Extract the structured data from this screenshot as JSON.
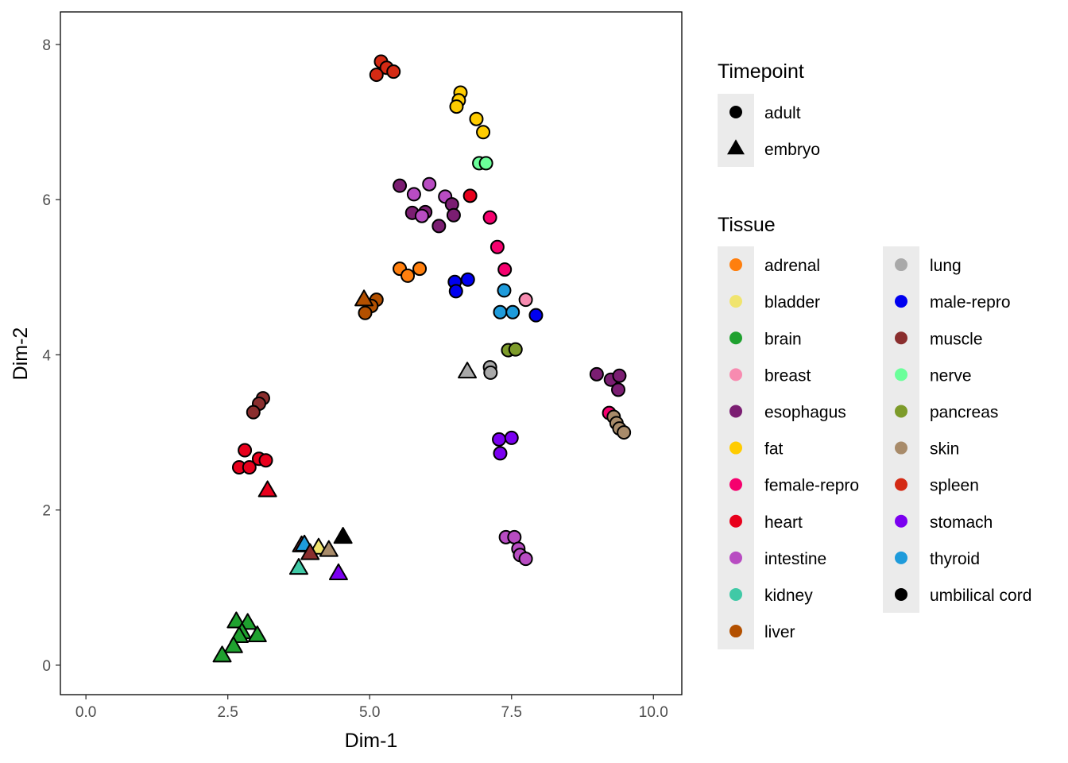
{
  "chart_data": {
    "type": "scatter",
    "xlabel": "Dim-1",
    "ylabel": "Dim-2",
    "xlim": [
      -0.45,
      10.5
    ],
    "ylim": [
      -0.38,
      8.42
    ],
    "xticks": [
      0,
      2.5,
      5,
      7.5,
      10
    ],
    "xtick_labels": [
      "0.0",
      "2.5",
      "5.0",
      "7.5",
      "10.0"
    ],
    "yticks": [
      0,
      2,
      4,
      6,
      8
    ],
    "ytick_labels": [
      "0",
      "2",
      "4",
      "6",
      "8"
    ],
    "grid": false,
    "legend_placement": "right",
    "legends": {
      "timepoint": {
        "title": "Timepoint",
        "items": [
          {
            "label": "adult",
            "shape": "circle"
          },
          {
            "label": "embryo",
            "shape": "triangle"
          }
        ]
      },
      "tissue": {
        "title": "Tissue",
        "items": [
          {
            "label": "adrenal",
            "color": "#FF7F0E"
          },
          {
            "label": "bladder",
            "color": "#F0E46E"
          },
          {
            "label": "brain",
            "color": "#1FA12F"
          },
          {
            "label": "breast",
            "color": "#F78BB0"
          },
          {
            "label": "esophagus",
            "color": "#7B1E72"
          },
          {
            "label": "fat",
            "color": "#FFCC00"
          },
          {
            "label": "female-repro",
            "color": "#F5006E"
          },
          {
            "label": "heart",
            "color": "#E8001C"
          },
          {
            "label": "intestine",
            "color": "#B84CC2"
          },
          {
            "label": "kidney",
            "color": "#40C9A6"
          },
          {
            "label": "liver",
            "color": "#B35000"
          },
          {
            "label": "lung",
            "color": "#A9A9A9"
          },
          {
            "label": "male-repro",
            "color": "#0000F0"
          },
          {
            "label": "muscle",
            "color": "#8A2E2E"
          },
          {
            "label": "nerve",
            "color": "#6BFF9A"
          },
          {
            "label": "pancreas",
            "color": "#7D9B2A"
          },
          {
            "label": "skin",
            "color": "#A88B6A"
          },
          {
            "label": "spleen",
            "color": "#D42A14"
          },
          {
            "label": "stomach",
            "color": "#7B00F0"
          },
          {
            "label": "thyroid",
            "color": "#1E9BDB"
          },
          {
            "label": "umbilical cord",
            "color": "#000000"
          }
        ]
      }
    },
    "points": [
      {
        "x": 5.2,
        "y": 7.78,
        "tissue": "spleen",
        "timepoint": "adult"
      },
      {
        "x": 5.3,
        "y": 7.7,
        "tissue": "spleen",
        "timepoint": "adult"
      },
      {
        "x": 5.42,
        "y": 7.65,
        "tissue": "spleen",
        "timepoint": "adult"
      },
      {
        "x": 5.12,
        "y": 7.61,
        "tissue": "spleen",
        "timepoint": "adult"
      },
      {
        "x": 6.6,
        "y": 7.38,
        "tissue": "fat",
        "timepoint": "adult"
      },
      {
        "x": 6.57,
        "y": 7.28,
        "tissue": "fat",
        "timepoint": "adult"
      },
      {
        "x": 6.53,
        "y": 7.2,
        "tissue": "fat",
        "timepoint": "adult"
      },
      {
        "x": 6.88,
        "y": 7.04,
        "tissue": "fat",
        "timepoint": "adult"
      },
      {
        "x": 7.0,
        "y": 6.87,
        "tissue": "fat",
        "timepoint": "adult"
      },
      {
        "x": 6.93,
        "y": 6.47,
        "tissue": "nerve",
        "timepoint": "adult"
      },
      {
        "x": 7.05,
        "y": 6.47,
        "tissue": "nerve",
        "timepoint": "adult"
      },
      {
        "x": 5.53,
        "y": 6.18,
        "tissue": "esophagus",
        "timepoint": "adult"
      },
      {
        "x": 6.05,
        "y": 6.2,
        "tissue": "intestine",
        "timepoint": "adult"
      },
      {
        "x": 5.78,
        "y": 6.07,
        "tissue": "intestine",
        "timepoint": "adult"
      },
      {
        "x": 6.33,
        "y": 6.04,
        "tissue": "intestine",
        "timepoint": "adult"
      },
      {
        "x": 6.45,
        "y": 5.94,
        "tissue": "esophagus",
        "timepoint": "adult"
      },
      {
        "x": 5.75,
        "y": 5.83,
        "tissue": "esophagus",
        "timepoint": "adult"
      },
      {
        "x": 5.98,
        "y": 5.84,
        "tissue": "esophagus",
        "timepoint": "adult"
      },
      {
        "x": 5.92,
        "y": 5.79,
        "tissue": "intestine",
        "timepoint": "adult"
      },
      {
        "x": 6.48,
        "y": 5.8,
        "tissue": "esophagus",
        "timepoint": "adult"
      },
      {
        "x": 6.22,
        "y": 5.66,
        "tissue": "esophagus",
        "timepoint": "adult"
      },
      {
        "x": 6.77,
        "y": 6.05,
        "tissue": "heart",
        "timepoint": "adult"
      },
      {
        "x": 7.12,
        "y": 5.77,
        "tissue": "female-repro",
        "timepoint": "adult"
      },
      {
        "x": 7.25,
        "y": 5.39,
        "tissue": "female-repro",
        "timepoint": "adult"
      },
      {
        "x": 7.38,
        "y": 5.1,
        "tissue": "female-repro",
        "timepoint": "adult"
      },
      {
        "x": 5.53,
        "y": 5.11,
        "tissue": "adrenal",
        "timepoint": "adult"
      },
      {
        "x": 5.67,
        "y": 5.02,
        "tissue": "adrenal",
        "timepoint": "adult"
      },
      {
        "x": 5.88,
        "y": 5.11,
        "tissue": "adrenal",
        "timepoint": "adult"
      },
      {
        "x": 6.5,
        "y": 4.94,
        "tissue": "male-repro",
        "timepoint": "adult"
      },
      {
        "x": 6.52,
        "y": 4.82,
        "tissue": "male-repro",
        "timepoint": "adult"
      },
      {
        "x": 6.73,
        "y": 4.97,
        "tissue": "male-repro",
        "timepoint": "adult"
      },
      {
        "x": 7.37,
        "y": 4.83,
        "tissue": "thyroid",
        "timepoint": "adult"
      },
      {
        "x": 7.75,
        "y": 4.71,
        "tissue": "breast",
        "timepoint": "adult"
      },
      {
        "x": 7.3,
        "y": 4.55,
        "tissue": "thyroid",
        "timepoint": "adult"
      },
      {
        "x": 7.52,
        "y": 4.55,
        "tissue": "thyroid",
        "timepoint": "adult"
      },
      {
        "x": 7.93,
        "y": 4.51,
        "tissue": "male-repro",
        "timepoint": "adult"
      },
      {
        "x": 7.44,
        "y": 4.06,
        "tissue": "pancreas",
        "timepoint": "adult"
      },
      {
        "x": 7.57,
        "y": 4.07,
        "tissue": "pancreas",
        "timepoint": "adult"
      },
      {
        "x": 4.9,
        "y": 4.71,
        "tissue": "liver",
        "timepoint": "embryo"
      },
      {
        "x": 5.12,
        "y": 4.71,
        "tissue": "liver",
        "timepoint": "adult"
      },
      {
        "x": 5.03,
        "y": 4.63,
        "tissue": "liver",
        "timepoint": "adult"
      },
      {
        "x": 4.92,
        "y": 4.54,
        "tissue": "liver",
        "timepoint": "adult"
      },
      {
        "x": 6.72,
        "y": 3.78,
        "tissue": "lung",
        "timepoint": "embryo"
      },
      {
        "x": 7.12,
        "y": 3.84,
        "tissue": "lung",
        "timepoint": "adult"
      },
      {
        "x": 7.13,
        "y": 3.77,
        "tissue": "lung",
        "timepoint": "adult"
      },
      {
        "x": 9.0,
        "y": 3.75,
        "tissue": "esophagus",
        "timepoint": "adult"
      },
      {
        "x": 9.25,
        "y": 3.68,
        "tissue": "esophagus",
        "timepoint": "adult"
      },
      {
        "x": 9.4,
        "y": 3.73,
        "tissue": "esophagus",
        "timepoint": "adult"
      },
      {
        "x": 9.38,
        "y": 3.55,
        "tissue": "esophagus",
        "timepoint": "adult"
      },
      {
        "x": 9.22,
        "y": 3.25,
        "tissue": "female-repro",
        "timepoint": "adult"
      },
      {
        "x": 9.3,
        "y": 3.2,
        "tissue": "skin",
        "timepoint": "adult"
      },
      {
        "x": 9.35,
        "y": 3.12,
        "tissue": "skin",
        "timepoint": "adult"
      },
      {
        "x": 9.4,
        "y": 3.05,
        "tissue": "skin",
        "timepoint": "adult"
      },
      {
        "x": 9.48,
        "y": 3.0,
        "tissue": "skin",
        "timepoint": "adult"
      },
      {
        "x": 3.12,
        "y": 3.44,
        "tissue": "muscle",
        "timepoint": "adult"
      },
      {
        "x": 3.05,
        "y": 3.37,
        "tissue": "muscle",
        "timepoint": "adult"
      },
      {
        "x": 2.95,
        "y": 3.26,
        "tissue": "muscle",
        "timepoint": "adult"
      },
      {
        "x": 2.8,
        "y": 2.77,
        "tissue": "heart",
        "timepoint": "adult"
      },
      {
        "x": 3.05,
        "y": 2.66,
        "tissue": "heart",
        "timepoint": "adult"
      },
      {
        "x": 3.17,
        "y": 2.64,
        "tissue": "heart",
        "timepoint": "adult"
      },
      {
        "x": 2.7,
        "y": 2.55,
        "tissue": "heart",
        "timepoint": "adult"
      },
      {
        "x": 2.88,
        "y": 2.55,
        "tissue": "heart",
        "timepoint": "adult"
      },
      {
        "x": 3.2,
        "y": 2.25,
        "tissue": "heart",
        "timepoint": "embryo"
      },
      {
        "x": 7.28,
        "y": 2.91,
        "tissue": "stomach",
        "timepoint": "adult"
      },
      {
        "x": 7.5,
        "y": 2.93,
        "tissue": "stomach",
        "timepoint": "adult"
      },
      {
        "x": 7.3,
        "y": 2.73,
        "tissue": "stomach",
        "timepoint": "adult"
      },
      {
        "x": 7.4,
        "y": 1.65,
        "tissue": "intestine",
        "timepoint": "adult"
      },
      {
        "x": 7.55,
        "y": 1.65,
        "tissue": "intestine",
        "timepoint": "adult"
      },
      {
        "x": 7.62,
        "y": 1.5,
        "tissue": "intestine",
        "timepoint": "adult"
      },
      {
        "x": 7.65,
        "y": 1.42,
        "tissue": "intestine",
        "timepoint": "adult"
      },
      {
        "x": 7.75,
        "y": 1.37,
        "tissue": "intestine",
        "timepoint": "adult"
      },
      {
        "x": 4.53,
        "y": 1.65,
        "tissue": "umbilical cord",
        "timepoint": "embryo"
      },
      {
        "x": 3.8,
        "y": 1.54,
        "tissue": "muscle",
        "timepoint": "embryo"
      },
      {
        "x": 3.85,
        "y": 1.55,
        "tissue": "thyroid",
        "timepoint": "embryo"
      },
      {
        "x": 4.1,
        "y": 1.51,
        "tissue": "bladder",
        "timepoint": "embryo"
      },
      {
        "x": 4.28,
        "y": 1.48,
        "tissue": "skin",
        "timepoint": "embryo"
      },
      {
        "x": 3.95,
        "y": 1.44,
        "tissue": "muscle",
        "timepoint": "embryo"
      },
      {
        "x": 3.75,
        "y": 1.25,
        "tissue": "kidney",
        "timepoint": "embryo"
      },
      {
        "x": 4.45,
        "y": 1.18,
        "tissue": "stomach",
        "timepoint": "embryo"
      },
      {
        "x": 2.65,
        "y": 0.56,
        "tissue": "brain",
        "timepoint": "embryo"
      },
      {
        "x": 2.85,
        "y": 0.54,
        "tissue": "brain",
        "timepoint": "embryo"
      },
      {
        "x": 2.75,
        "y": 0.42,
        "tissue": "brain",
        "timepoint": "embryo"
      },
      {
        "x": 2.7,
        "y": 0.37,
        "tissue": "brain",
        "timepoint": "embryo"
      },
      {
        "x": 3.02,
        "y": 0.38,
        "tissue": "brain",
        "timepoint": "embryo"
      },
      {
        "x": 2.6,
        "y": 0.24,
        "tissue": "brain",
        "timepoint": "embryo"
      },
      {
        "x": 2.4,
        "y": 0.12,
        "tissue": "brain",
        "timepoint": "embryo"
      }
    ]
  }
}
